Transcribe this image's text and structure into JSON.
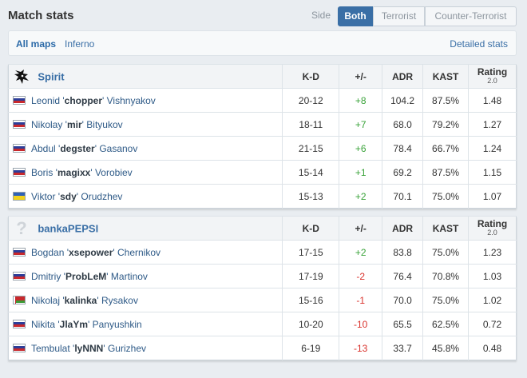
{
  "header": {
    "title": "Match stats",
    "side_label": "Side",
    "side_options": [
      "Both",
      "Terrorist",
      "Counter-Terrorist"
    ]
  },
  "maps": {
    "tabs": [
      "All maps",
      "Inferno"
    ],
    "detailed_link": "Detailed stats"
  },
  "columns": {
    "kd": "K-D",
    "plus_minus": "+/-",
    "adr": "ADR",
    "kast": "KAST",
    "rating": "Rating",
    "rating_version": "2.0"
  },
  "teams": [
    {
      "name": "Spirit",
      "logo_icon": "spirit-dragon-icon",
      "players": [
        {
          "first": "Leonid '",
          "nick": "chopper",
          "last": "' Vishnyakov",
          "flag": "ru",
          "kd": "20-12",
          "pm": "+8",
          "adr": "104.2",
          "kast": "87.5%",
          "rating": "1.48"
        },
        {
          "first": "Nikolay '",
          "nick": "mir",
          "last": "' Bityukov",
          "flag": "ru",
          "kd": "18-11",
          "pm": "+7",
          "adr": "68.0",
          "kast": "79.2%",
          "rating": "1.27"
        },
        {
          "first": "Abdul '",
          "nick": "degster",
          "last": "' Gasanov",
          "flag": "ru",
          "kd": "21-15",
          "pm": "+6",
          "adr": "78.4",
          "kast": "66.7%",
          "rating": "1.24"
        },
        {
          "first": "Boris '",
          "nick": "magixx",
          "last": "' Vorobiev",
          "flag": "ru",
          "kd": "15-14",
          "pm": "+1",
          "adr": "69.2",
          "kast": "87.5%",
          "rating": "1.15"
        },
        {
          "first": "Viktor '",
          "nick": "sdy",
          "last": "' Orudzhev",
          "flag": "ua",
          "kd": "15-13",
          "pm": "+2",
          "adr": "70.1",
          "kast": "75.0%",
          "rating": "1.07"
        }
      ]
    },
    {
      "name": "bankaPEPSI",
      "logo_icon": "question-mark-icon",
      "logo_glyph": "?",
      "players": [
        {
          "first": "Bogdan '",
          "nick": "xsepower",
          "last": "' Chernikov",
          "flag": "ru",
          "kd": "17-15",
          "pm": "+2",
          "adr": "83.8",
          "kast": "75.0%",
          "rating": "1.23"
        },
        {
          "first": "Dmitriy '",
          "nick": "ProbLeM",
          "last": "' Martinov",
          "flag": "ru",
          "kd": "17-19",
          "pm": "-2",
          "adr": "76.4",
          "kast": "70.8%",
          "rating": "1.03"
        },
        {
          "first": "Nikolaj '",
          "nick": "kalinka",
          "last": "' Rysakov",
          "flag": "by",
          "kd": "15-16",
          "pm": "-1",
          "adr": "70.0",
          "kast": "75.0%",
          "rating": "1.02"
        },
        {
          "first": "Nikita '",
          "nick": "JlaYm",
          "last": "' Panyushkin",
          "flag": "ru",
          "kd": "10-20",
          "pm": "-10",
          "adr": "65.5",
          "kast": "62.5%",
          "rating": "0.72"
        },
        {
          "first": "Tembulat '",
          "nick": "lyNNN",
          "last": "' Gurizhev",
          "flag": "ru",
          "kd": "6-19",
          "pm": "-13",
          "adr": "33.7",
          "kast": "45.8%",
          "rating": "0.48"
        }
      ]
    }
  ],
  "colors": {
    "accent": "#3a6fa6",
    "positive": "#3aa33a",
    "negative": "#d9312b"
  }
}
